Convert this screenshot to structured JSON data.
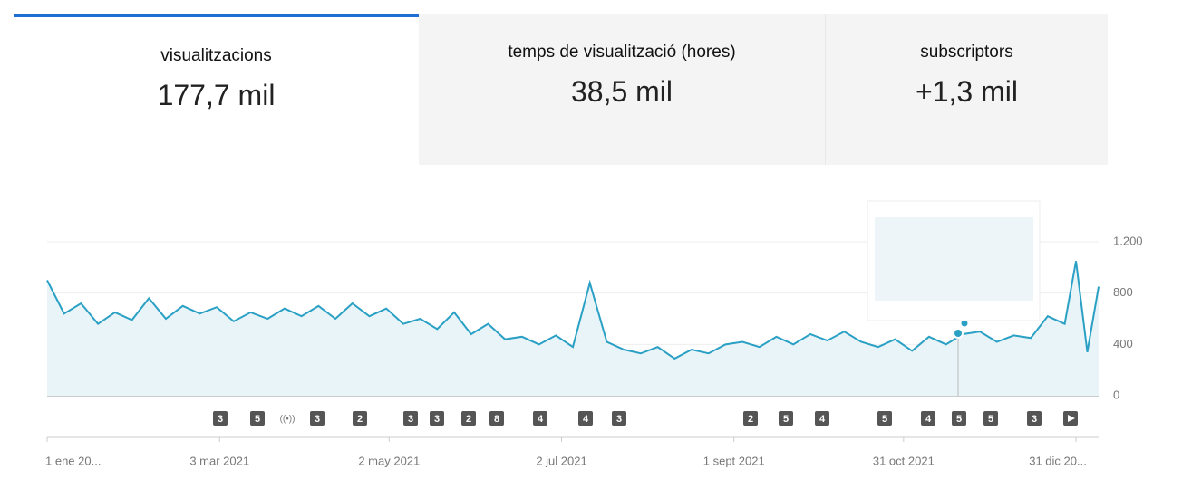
{
  "tabs": [
    {
      "label": "visualitzacions",
      "value": "177,7 mil"
    },
    {
      "label": "temps de visualització (hores)",
      "value": "38,5 mil"
    },
    {
      "label": "subscriptors",
      "value": "+1,3 mil"
    }
  ],
  "chart_data": {
    "type": "area",
    "color": "#2aa0c4",
    "fill": "#e9f4f9",
    "x": [
      0,
      6,
      12,
      18,
      24,
      30,
      36,
      42,
      48,
      54,
      60,
      66,
      72,
      78,
      84,
      90,
      96,
      102,
      108,
      114,
      120,
      126,
      132,
      138,
      144,
      150,
      156,
      162,
      168,
      174,
      180,
      186,
      192,
      198,
      204,
      210,
      216,
      222,
      228,
      234,
      240,
      246,
      252,
      258,
      264,
      270,
      276,
      282,
      288,
      294,
      300,
      306,
      312,
      318,
      324,
      330,
      336,
      342,
      348,
      354,
      360,
      364,
      368,
      372
    ],
    "values": [
      900,
      640,
      720,
      560,
      650,
      590,
      760,
      600,
      700,
      640,
      690,
      580,
      650,
      600,
      680,
      620,
      700,
      600,
      720,
      620,
      680,
      560,
      600,
      520,
      650,
      480,
      560,
      440,
      460,
      400,
      470,
      380,
      880,
      420,
      360,
      330,
      380,
      290,
      360,
      330,
      400,
      420,
      380,
      460,
      400,
      480,
      430,
      500,
      420,
      380,
      440,
      350,
      460,
      400,
      480,
      500,
      420,
      470,
      450,
      620,
      560,
      1050,
      340,
      850
    ],
    "xlim": [
      0,
      372
    ],
    "xticks": [
      {
        "value": 0,
        "label": "1 ene 20..."
      },
      {
        "value": 61,
        "label": "3 mar 2021"
      },
      {
        "value": 121,
        "label": "2 may 2021"
      },
      {
        "value": 182,
        "label": "2 jul 2021"
      },
      {
        "value": 243,
        "label": "1 sept 2021"
      },
      {
        "value": 303,
        "label": "31 oct 2021"
      },
      {
        "value": 364,
        "label": "31 dic 20..."
      }
    ],
    "ylim": [
      0,
      1200
    ],
    "yticks": [
      0,
      400,
      800,
      {
        "value": 1200,
        "label": "1.200"
      }
    ],
    "grid": true,
    "markers": [
      "3",
      "5",
      "3",
      "2",
      "3",
      "3",
      "2",
      "8",
      "4",
      "4",
      "3",
      "2",
      "5",
      "4",
      "5",
      "4",
      "5",
      "5",
      "3"
    ]
  }
}
